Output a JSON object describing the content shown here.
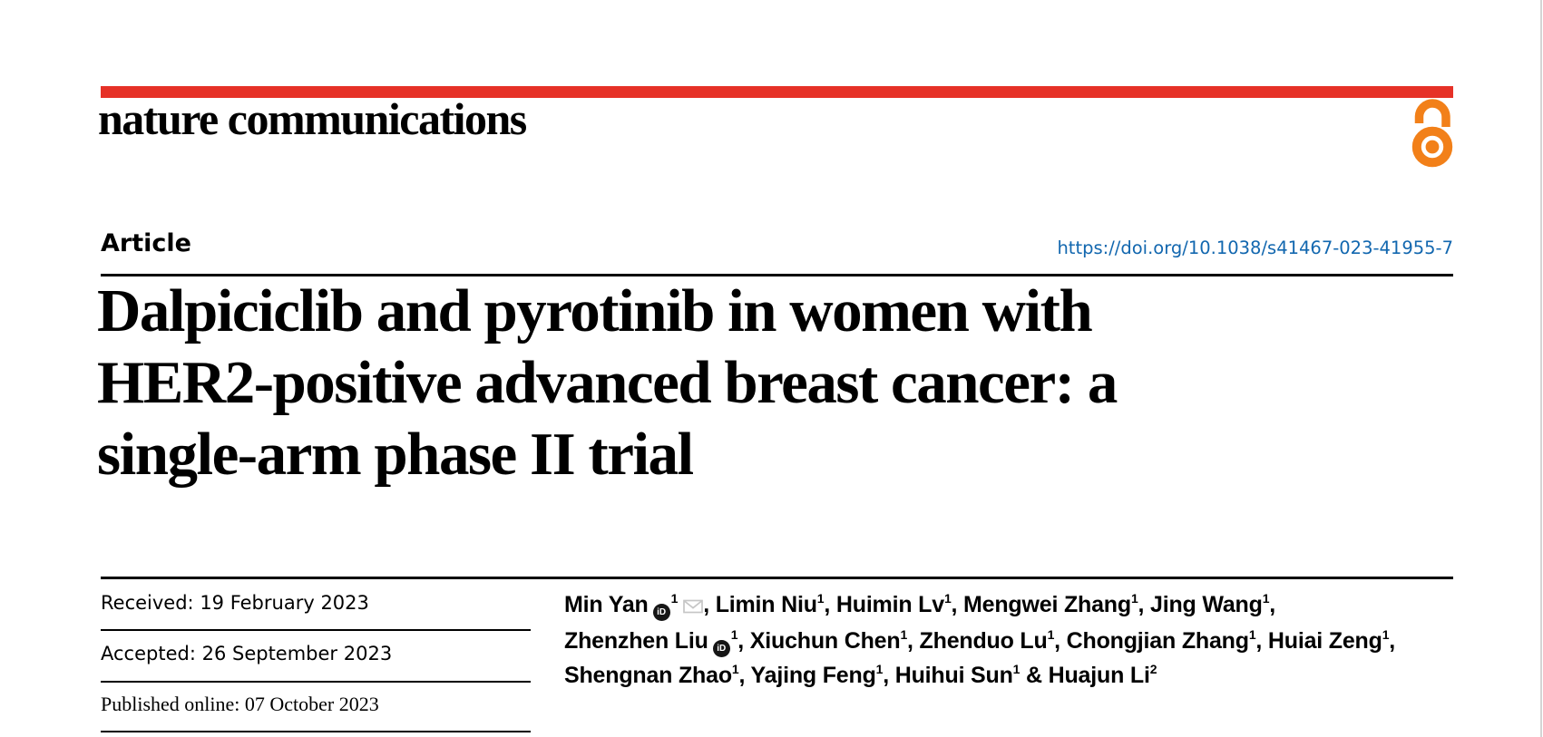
{
  "theme": {
    "accent_red": "#e63127",
    "doi_blue": "#1267af",
    "open_access_orange": "#f28019",
    "rule_black": "#000000",
    "page_edge_gray": "#d4d4d4",
    "envelope_gray": "#c6c6c6",
    "orcid_black": "#161616"
  },
  "icons": {
    "orcid_label": "iD"
  },
  "masthead": {
    "journal": "nature communications"
  },
  "article": {
    "kicker": "Article",
    "doi": "https://doi.org/10.1038/s41467-023-41955-7",
    "title_lines": [
      "Dalpiciclib and pyrotinib in women with",
      "HER2-positive advanced breast cancer: a",
      "single-arm phase II trial"
    ]
  },
  "dates": [
    {
      "label": "Received:",
      "value": "19 February 2023",
      "style": "sans"
    },
    {
      "label": "Accepted:",
      "value": "26 September 2023",
      "style": "sans"
    },
    {
      "label": "Published online:",
      "value": "07 October 2023",
      "style": "serif"
    }
  ],
  "authors": {
    "lines": [
      [
        {
          "name": "Min Yan",
          "orcid": true,
          "sup": "1",
          "email": true,
          "after": ", "
        },
        {
          "name": "Limin Niu",
          "sup": "1",
          "after": ", "
        },
        {
          "name": "Huimin Lv",
          "sup": "1",
          "after": ", "
        },
        {
          "name": "Mengwei Zhang",
          "sup": "1",
          "after": ", "
        },
        {
          "name": "Jing Wang",
          "sup": "1",
          "after": ","
        }
      ],
      [
        {
          "name": "Zhenzhen Liu",
          "orcid": true,
          "sup": "1",
          "after": ", "
        },
        {
          "name": "Xiuchun Chen",
          "sup": "1",
          "after": ", "
        },
        {
          "name": "Zhenduo Lu",
          "sup": "1",
          "after": ", "
        },
        {
          "name": "Chongjian Zhang",
          "sup": "1",
          "after": ", "
        },
        {
          "name": "Huiai Zeng",
          "sup": "1",
          "after": ","
        }
      ],
      [
        {
          "name": "Shengnan Zhao",
          "sup": "1",
          "after": ", "
        },
        {
          "name": "Yajing Feng",
          "sup": "1",
          "after": ", "
        },
        {
          "name": "Huihui Sun",
          "sup": "1",
          "after": " & "
        },
        {
          "name": "Huajun Li",
          "sup": "2",
          "after": ""
        }
      ]
    ]
  }
}
